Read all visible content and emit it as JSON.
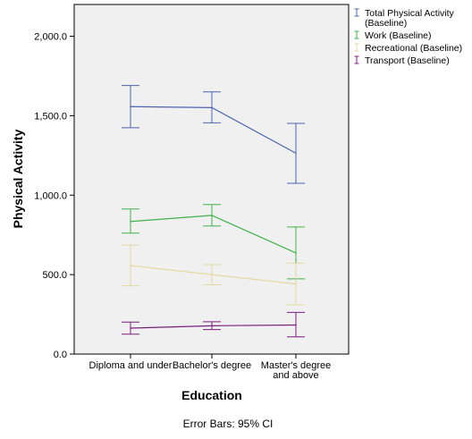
{
  "chart_data": {
    "type": "line",
    "xlabel": "Education",
    "ylabel": "Physical Activity",
    "ylim": [
      0,
      2200
    ],
    "yticks": [
      "0.0",
      "500.0",
      "1,000.0",
      "1,500.0",
      "2,000.0"
    ],
    "ytick_values": [
      0,
      500,
      1000,
      1500,
      2000
    ],
    "categories": [
      [
        "Diploma and under"
      ],
      [
        "Bachelor's degree"
      ],
      [
        "Master's degree",
        "and above"
      ]
    ],
    "grid": false,
    "legend_position": "top-right-outside",
    "note": "Error Bars: 95% CI",
    "series": [
      {
        "name": [
          "Total Physical Activity",
          "(Baseline)"
        ],
        "color": "#4c64b0",
        "values": [
          1557,
          1551,
          1264
        ],
        "lower": [
          1424,
          1455,
          1075
        ],
        "upper": [
          1690,
          1650,
          1452
        ]
      },
      {
        "name": [
          "Work (Baseline)"
        ],
        "color": "#3fb24a",
        "values": [
          834,
          873,
          636
        ],
        "lower": [
          761,
          806,
          473
        ],
        "upper": [
          913,
          941,
          800
        ]
      },
      {
        "name": [
          "Recreational (Baseline)"
        ],
        "color": "#e3d9a2",
        "values": [
          557,
          500,
          441
        ],
        "lower": [
          430,
          436,
          310
        ],
        "upper": [
          686,
          563,
          572
        ]
      },
      {
        "name": [
          "Transport (Baseline)"
        ],
        "color": "#7b1f7f",
        "values": [
          163,
          178,
          183
        ],
        "lower": [
          125,
          154,
          108
        ],
        "upper": [
          201,
          203,
          262
        ]
      }
    ]
  }
}
